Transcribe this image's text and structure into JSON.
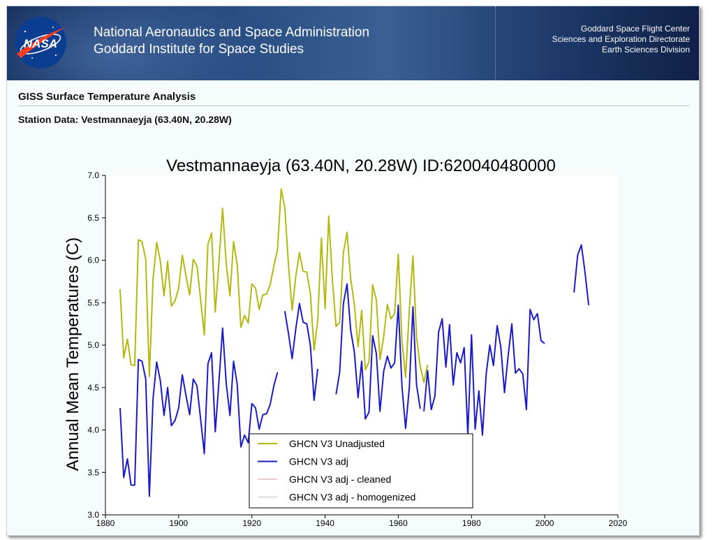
{
  "header": {
    "agency_line1": "National Aeronautics and Space Administration",
    "agency_line2": "Goddard Institute for Space Studies",
    "logo_text": "NASA",
    "center_line1": "Goddard Space Flight Center",
    "center_line2": "Sciences and Exploration Directorate",
    "center_line3": "Earth Sciences Division"
  },
  "page": {
    "title": "GISS Surface Temperature Analysis",
    "station_heading": "Station Data: Vestmannaeyja (63.40N, 20.28W)"
  },
  "colors": {
    "unadjusted": "#b5b80f",
    "adj": "#1a1ac8",
    "cleaned": "#f0c8c8",
    "homogenized": "#dcdcdc"
  },
  "chart_data": {
    "type": "line",
    "title": "Vestmannaeyja (63.40N, 20.28W) ID:620040480000",
    "xlabel": "",
    "ylabel": "Annual Mean Temperatures (C)",
    "xlim": [
      1880,
      2020
    ],
    "ylim": [
      3.0,
      7.0
    ],
    "xticks": [
      "1880",
      "1900",
      "1920",
      "1940",
      "1960",
      "1980",
      "2000",
      "2020"
    ],
    "yticks": [
      "3.0",
      "3.5",
      "4.0",
      "4.5",
      "5.0",
      "5.5",
      "6.0",
      "6.5",
      "7.0"
    ],
    "legend_position": "bottom-center",
    "series": [
      {
        "name": "GHCN V3 Unadjusted",
        "segments": [
          {
            "x": [
              1884,
              1885,
              1886,
              1887,
              1888,
              1889,
              1890,
              1891,
              1892,
              1893,
              1894,
              1895,
              1896,
              1897,
              1898,
              1899,
              1900,
              1901,
              1902,
              1903,
              1904,
              1905,
              1906,
              1907,
              1908,
              1909,
              1910,
              1911,
              1912,
              1913,
              1914,
              1915,
              1916,
              1917,
              1918,
              1919,
              1920,
              1921,
              1922,
              1923,
              1924,
              1925,
              1926,
              1927,
              1928,
              1929,
              1930,
              1931,
              1932,
              1933,
              1934,
              1935,
              1936,
              1937,
              1938,
              1939,
              1940,
              1941,
              1942,
              1943,
              1944,
              1945,
              1946,
              1947,
              1948,
              1949,
              1950,
              1951,
              1952,
              1953,
              1954,
              1955,
              1956,
              1957,
              1958,
              1959,
              1960,
              1961,
              1962,
              1963,
              1964,
              1965,
              1966,
              1967,
              1968
            ],
            "y": [
              5.66,
              4.85,
              5.07,
              4.77,
              4.76,
              6.24,
              6.22,
              6.01,
              4.63,
              5.78,
              6.21,
              5.99,
              5.58,
              5.99,
              5.46,
              5.52,
              5.67,
              6.06,
              5.82,
              5.59,
              6.01,
              5.93,
              5.54,
              5.12,
              6.19,
              6.32,
              5.39,
              5.97,
              6.61,
              5.96,
              5.58,
              6.22,
              5.95,
              5.21,
              5.35,
              5.26,
              5.72,
              5.67,
              5.42,
              5.59,
              5.6,
              5.71,
              5.93,
              6.12,
              6.84,
              6.62,
              5.95,
              5.41,
              5.81,
              6.09,
              5.87,
              5.86,
              5.6,
              4.94,
              5.3,
              6.26,
              5.43,
              6.52,
              5.76,
              5.22,
              5.27,
              6.09,
              6.33,
              5.78,
              5.48,
              4.98,
              5.41,
              4.71,
              4.8,
              5.71,
              5.53,
              4.83,
              5.1,
              5.48,
              5.31,
              5.37,
              6.07,
              5.04,
              4.62,
              5.41,
              6.05,
              5.09,
              4.75,
              4.56,
              4.77
            ]
          }
        ]
      },
      {
        "name": "GHCN V3 adj",
        "segments": [
          {
            "x": [
              1884,
              1885,
              1886,
              1887,
              1888,
              1889,
              1890,
              1891,
              1892,
              1893,
              1894,
              1895,
              1896,
              1897,
              1898,
              1899,
              1900,
              1901,
              1902,
              1903,
              1904,
              1905,
              1906,
              1907,
              1908,
              1909,
              1910,
              1911,
              1912,
              1913,
              1914,
              1915,
              1916,
              1917,
              1918,
              1919,
              1920,
              1921,
              1922,
              1923,
              1924,
              1925,
              1926,
              1927
            ],
            "y": [
              4.26,
              3.44,
              3.66,
              3.35,
              3.35,
              4.83,
              4.81,
              4.6,
              3.22,
              4.37,
              4.8,
              4.58,
              4.17,
              4.5,
              4.05,
              4.11,
              4.26,
              4.65,
              4.41,
              4.18,
              4.6,
              4.52,
              4.13,
              3.72,
              4.78,
              4.91,
              3.98,
              4.56,
              5.2,
              4.55,
              4.17,
              4.81,
              4.54,
              3.8,
              3.94,
              3.85,
              4.31,
              4.26,
              4.01,
              4.18,
              4.19,
              4.3,
              4.52,
              4.68
            ]
          },
          {
            "x": [
              1929,
              1930,
              1931,
              1932,
              1933,
              1934,
              1935,
              1936,
              1937,
              1938
            ],
            "y": [
              5.4,
              5.14,
              4.84,
              5.19,
              5.49,
              5.27,
              5.25,
              4.99,
              4.35,
              4.72
            ]
          },
          {
            "x": [
              1943,
              1944,
              1945,
              1946,
              1947,
              1948,
              1949,
              1950,
              1951,
              1952,
              1953,
              1954,
              1955,
              1956,
              1957,
              1958,
              1959,
              1960,
              1961,
              1962,
              1963,
              1964,
              1965,
              1966
            ],
            "y": [
              4.42,
              4.68,
              5.49,
              5.72,
              5.17,
              4.92,
              4.38,
              4.81,
              4.13,
              4.21,
              5.11,
              4.9,
              4.22,
              4.69,
              4.87,
              4.73,
              4.79,
              5.47,
              4.51,
              4.02,
              4.5,
              5.45,
              4.53,
              4.25
            ]
          },
          {
            "x": [
              1967,
              1968,
              1969,
              1970,
              1971,
              1972,
              1973,
              1974,
              1975,
              1976,
              1977,
              1978,
              1979,
              1980,
              1981,
              1982,
              1983,
              1984,
              1985,
              1986,
              1987,
              1988,
              1989,
              1990,
              1991,
              1992,
              1993,
              1994,
              1995,
              1996,
              1997,
              1998,
              1999,
              2000
            ],
            "y": [
              4.22,
              4.7,
              4.24,
              4.4,
              5.15,
              5.31,
              4.74,
              5.24,
              4.53,
              4.91,
              4.79,
              4.97,
              3.94,
              5.12,
              4.01,
              4.46,
              3.94,
              4.66,
              5.0,
              4.76,
              5.23,
              4.98,
              4.44,
              4.87,
              5.25,
              4.67,
              4.72,
              4.66,
              4.24,
              5.42,
              5.3,
              5.37,
              5.05,
              5.02
            ]
          },
          {
            "x": [
              2008,
              2009,
              2010,
              2011,
              2012
            ],
            "y": [
              5.62,
              6.06,
              6.18,
              5.86,
              5.47
            ]
          }
        ]
      },
      {
        "name": "GHCN V3 adj - cleaned",
        "segments": []
      },
      {
        "name": "GHCN V3 adj - homogenized",
        "segments": []
      }
    ]
  }
}
